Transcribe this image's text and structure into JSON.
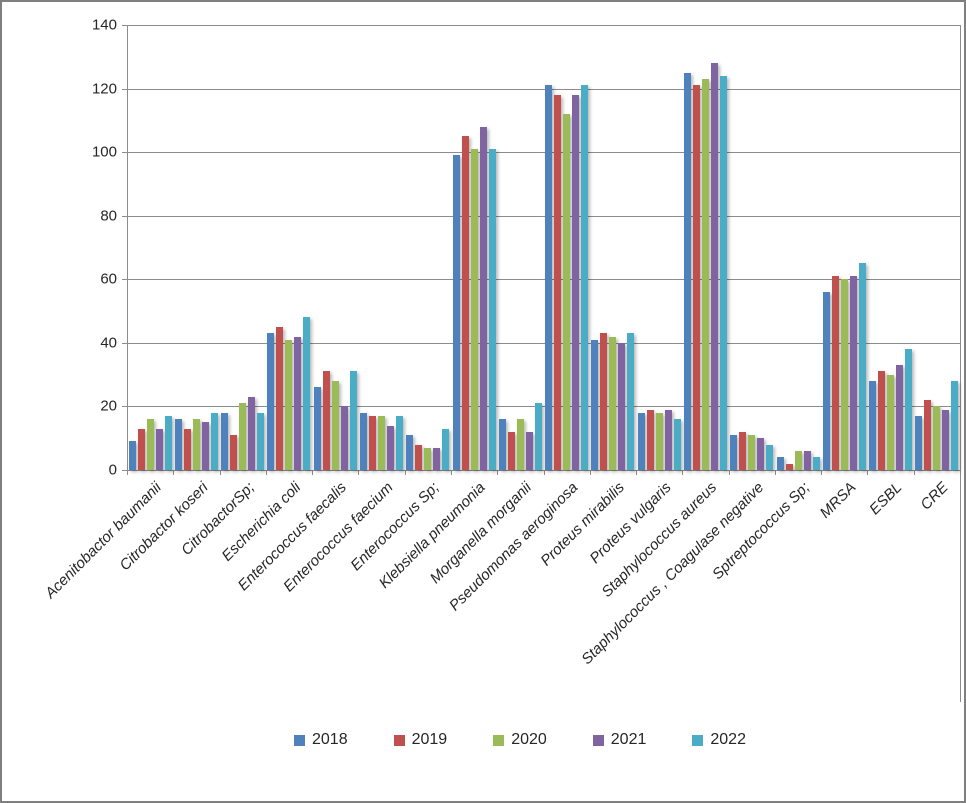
{
  "window": {
    "background": "#FFFFFF",
    "border_color": "#7F7F7F"
  },
  "chart_data": {
    "type": "bar",
    "title": "",
    "xlabel": "",
    "ylabel": "",
    "categories": [
      "Acenitobactor baumanii",
      "Citrobactor koseri",
      "CitrobactorSp;",
      "Escherichia coli",
      "Enterococcus faecalis",
      "Enterococcus faecium",
      "Enterococcus Sp;",
      "Klebsiella pneumonia",
      "Morganella morganii",
      "Pseudomonas aeroginosa",
      "Proteus mirabilis",
      "Proteus vulgaris",
      "Staphylococcus aureus",
      "Staphylococcus , Coagulase negative",
      "Sptreptococcus Sp;",
      "MRSA",
      "ESBL",
      "CRE"
    ],
    "series": [
      {
        "name": "2018",
        "color": "#4F81BD",
        "values": [
          9,
          16,
          18,
          43,
          26,
          18,
          11,
          99,
          16,
          121,
          41,
          18,
          125,
          11,
          4,
          56,
          28,
          17
        ]
      },
      {
        "name": "2019",
        "color": "#C0504D",
        "values": [
          13,
          13,
          11,
          45,
          31,
          17,
          8,
          105,
          12,
          118,
          43,
          19,
          121,
          12,
          2,
          61,
          31,
          22
        ]
      },
      {
        "name": "2020",
        "color": "#9BBB59",
        "values": [
          16,
          16,
          21,
          41,
          28,
          17,
          7,
          101,
          16,
          112,
          42,
          18,
          123,
          11,
          6,
          60,
          30,
          20
        ]
      },
      {
        "name": "2021",
        "color": "#8064A2",
        "values": [
          13,
          15,
          23,
          42,
          20,
          14,
          7,
          108,
          12,
          118,
          40,
          19,
          128,
          10,
          6,
          61,
          33,
          19
        ]
      },
      {
        "name": "2022",
        "color": "#4BACC6",
        "values": [
          17,
          18,
          18,
          48,
          31,
          17,
          13,
          101,
          21,
          121,
          43,
          16,
          124,
          8,
          4,
          65,
          38,
          28
        ]
      }
    ],
    "ylim": [
      0,
      140
    ],
    "ytick_step": 20,
    "yticks": [
      "0",
      "20",
      "40",
      "60",
      "80",
      "100",
      "120",
      "140"
    ],
    "grid": true,
    "gridline_color": "#8C8C8C",
    "axis_color": "#8C8C8C",
    "legend_position": "bottom"
  }
}
